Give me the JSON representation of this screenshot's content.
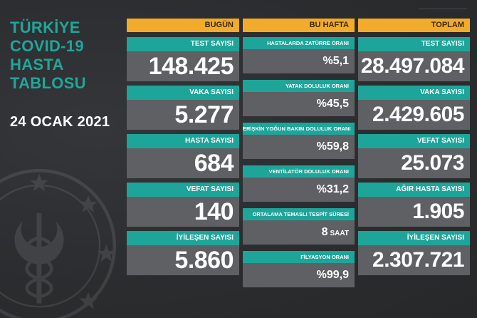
{
  "title_lines": [
    "TÜRKİYE",
    "COVID-19",
    "HASTA",
    "TABLOSU"
  ],
  "date": "24 OCAK 2021",
  "columns": {
    "today": {
      "header": "BUGÜN",
      "items": [
        {
          "label": "TEST SAYISI",
          "value": "148.425"
        },
        {
          "label": "VAKA SAYISI",
          "value": "5.277"
        },
        {
          "label": "HASTA SAYISI",
          "value": "684"
        },
        {
          "label": "VEFAT SAYISI",
          "value": "140"
        },
        {
          "label": "İYİLEŞEN SAYISI",
          "value": "5.860"
        }
      ]
    },
    "week": {
      "header": "BU HAFTA",
      "items": [
        {
          "label": "HASTALARDA ZATÜRRE ORANI",
          "value": "%5,1"
        },
        {
          "label": "YATAK DOLULUK ORANI",
          "value": "%45,5"
        },
        {
          "label": "ERİŞKİN YOĞUN BAKIM DOLULUK ORANI",
          "value": "%59,8"
        },
        {
          "label": "VENTİLATÖR DOLULUK ORANI",
          "value": "%31,2"
        },
        {
          "label": "ORTALAMA TEMASLI TESPİT SÜRESİ",
          "value": "8",
          "unit": "SAAT"
        },
        {
          "label": "FİLYASYON ORANI",
          "value": "%99,9"
        }
      ]
    },
    "total": {
      "header": "TOPLAM",
      "items": [
        {
          "label": "TEST SAYISI",
          "value": "28.497.084"
        },
        {
          "label": "VAKA SAYISI",
          "value": "2.429.605"
        },
        {
          "label": "VEFAT SAYISI",
          "value": "25.073"
        },
        {
          "label": "AĞIR HASTA SAYISI",
          "value": "1.905"
        },
        {
          "label": "İYİLEŞEN SAYISI",
          "value": "2.307.721"
        }
      ]
    }
  },
  "colors": {
    "accent_teal": "#1ea59a",
    "header_orange": "#f3ab2b",
    "value_gray": "#5e6063",
    "background": "#2b2d2f"
  }
}
